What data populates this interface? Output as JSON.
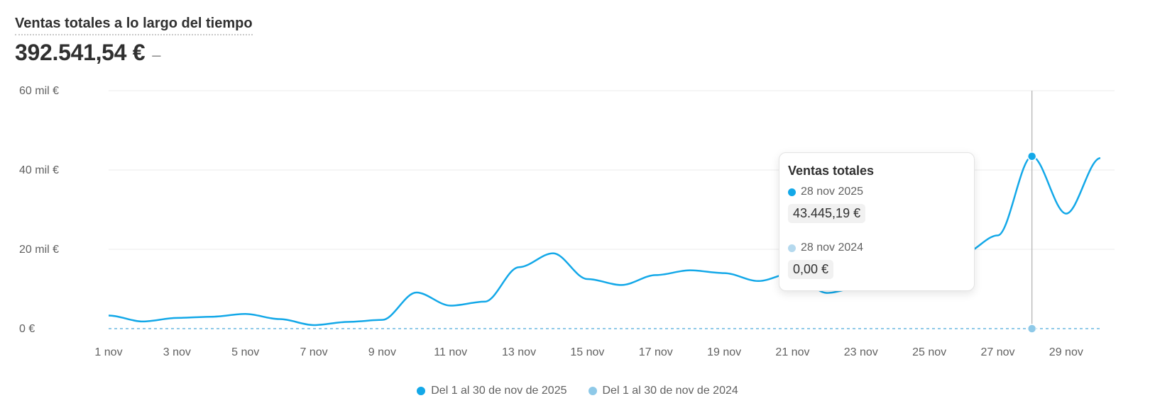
{
  "header": {
    "title": "Ventas totales a lo largo del tiempo",
    "total": "392.541,54 €",
    "delta": "–"
  },
  "colors": {
    "current": "#13a8e8",
    "previous": "#8ec9e8",
    "tooltip_previous_dot": "#b5d9ee",
    "cursor": "#b0b0b0"
  },
  "tooltip": {
    "title": "Ventas totales",
    "current_date": "28 nov 2025",
    "current_value": "43.445,19 €",
    "previous_date": "28 nov 2024",
    "previous_value": "0,00 €"
  },
  "legend": {
    "current": "Del 1 al 30 de nov de 2025",
    "previous": "Del 1 al 30 de nov de 2024"
  },
  "chart_data": {
    "type": "line",
    "x": [
      1,
      2,
      3,
      4,
      5,
      6,
      7,
      8,
      9,
      10,
      11,
      12,
      13,
      14,
      15,
      16,
      17,
      18,
      19,
      20,
      21,
      22,
      23,
      24,
      25,
      26,
      27,
      28,
      29,
      30
    ],
    "x_ticks": [
      1,
      3,
      5,
      7,
      9,
      11,
      13,
      15,
      17,
      19,
      21,
      23,
      25,
      27,
      29
    ],
    "x_tick_labels": [
      "1 nov",
      "3 nov",
      "5 nov",
      "7 nov",
      "9 nov",
      "11 nov",
      "13 nov",
      "15 nov",
      "17 nov",
      "19 nov",
      "21 nov",
      "23 nov",
      "25 nov",
      "27 nov",
      "29 nov"
    ],
    "y_ticks": [
      0,
      20000,
      40000,
      60000
    ],
    "y_tick_labels": [
      "0 €",
      "20 mil €",
      "40 mil €",
      "60 mil €"
    ],
    "ylim": [
      0,
      60000
    ],
    "xlim": [
      1,
      30
    ],
    "highlight_x": 28,
    "series": [
      {
        "name": "Del 1 al 30 de nov de 2025",
        "values": [
          3300,
          1800,
          2700,
          3000,
          3700,
          2400,
          900,
          1700,
          2200,
          9100,
          5800,
          6800,
          15500,
          19000,
          12500,
          11000,
          13500,
          14700,
          14000,
          12000,
          14000,
          9000,
          10500,
          14000,
          29000,
          19000,
          23500,
          43445,
          29000,
          43000
        ]
      },
      {
        "name": "Del 1 al 30 de nov de 2024",
        "values": [
          0,
          0,
          0,
          0,
          0,
          0,
          0,
          0,
          0,
          0,
          0,
          0,
          0,
          0,
          0,
          0,
          0,
          0,
          0,
          0,
          0,
          0,
          0,
          0,
          0,
          0,
          0,
          0,
          0,
          0
        ]
      }
    ]
  }
}
